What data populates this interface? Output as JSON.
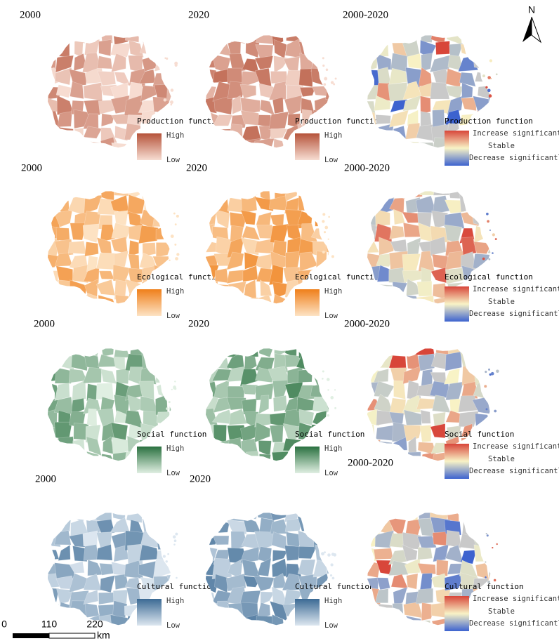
{
  "north": "N",
  "scale_bar": {
    "ticks": [
      "0",
      "110",
      "220"
    ],
    "unit": "km"
  },
  "rows": [
    {
      "panels": [
        {
          "title": "2000",
          "function": "Production function",
          "legend": [
            "High",
            "Low"
          ]
        },
        {
          "title": "2020",
          "function": "Production function",
          "legend": [
            "High",
            "Low"
          ]
        },
        {
          "title": "2000-2020",
          "function": "Production function",
          "legend": [
            "Increase significantly",
            "Stable",
            "Decrease significantly"
          ]
        }
      ]
    },
    {
      "panels": [
        {
          "title": "2000",
          "function": "Ecological function",
          "legend": [
            "High",
            "Low"
          ]
        },
        {
          "title": "2020",
          "function": "Ecological function",
          "legend": [
            "High",
            "Low"
          ]
        },
        {
          "title": "2000-2020",
          "function": "Ecological function",
          "legend": [
            "Increase significantly",
            "Stable",
            "Decrease significantly"
          ]
        }
      ]
    },
    {
      "panels": [
        {
          "title": "2000",
          "function": "Social function",
          "legend": [
            "High",
            "Low"
          ]
        },
        {
          "title": "2020",
          "function": "Social function",
          "legend": [
            "High",
            "Low"
          ]
        },
        {
          "title": "2000-2020",
          "function": "Social function",
          "legend": [
            "Increase significantly",
            "Stable",
            "Decrease significantly"
          ]
        }
      ]
    },
    {
      "panels": [
        {
          "title": "2000",
          "function": "Cultural function",
          "legend": [
            "High",
            "Low"
          ]
        },
        {
          "title": "2020",
          "function": "Cultural function",
          "legend": [
            "High",
            "Low"
          ]
        },
        {
          "title": "2000-2020",
          "function": "Cultural function",
          "legend": [
            "Increase significantly",
            "Stable",
            "Decrease significantly"
          ]
        }
      ]
    }
  ]
}
